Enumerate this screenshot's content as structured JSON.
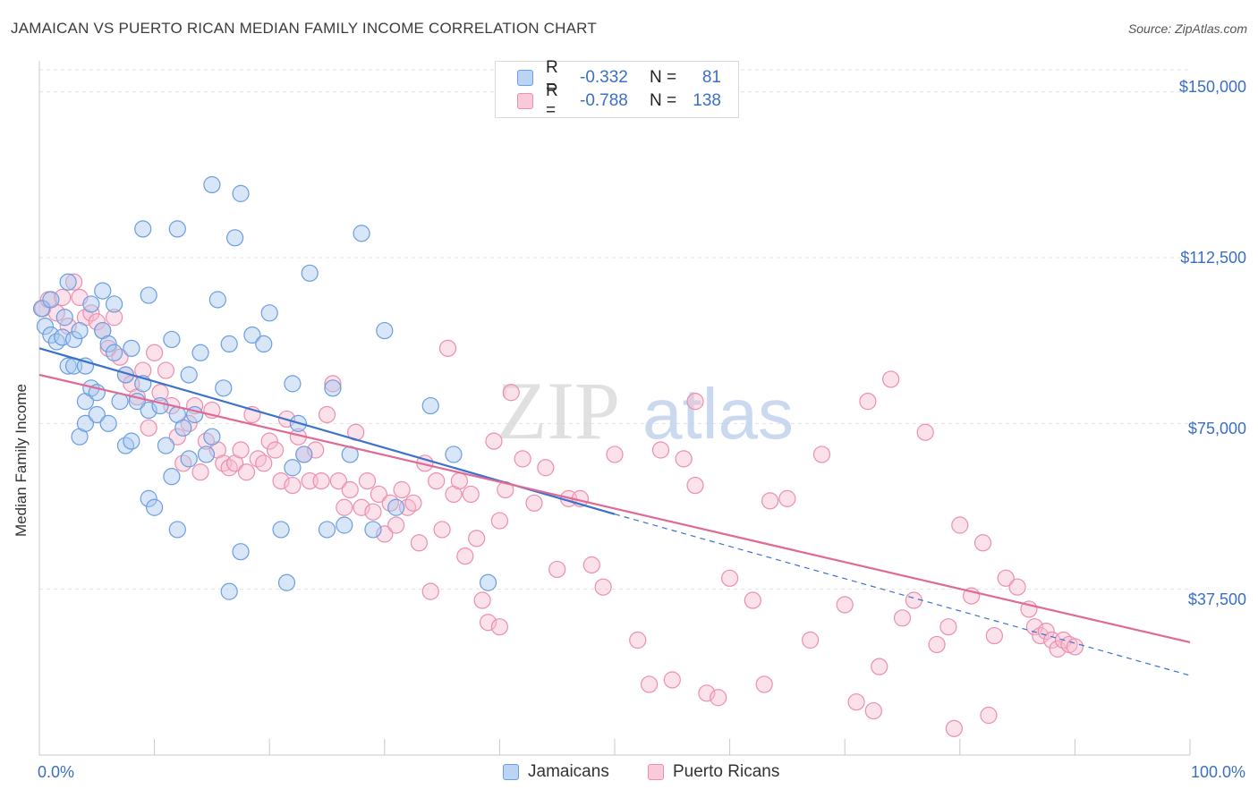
{
  "header": {
    "title": "JAMAICAN VS PUERTO RICAN MEDIAN FAMILY INCOME CORRELATION CHART",
    "source": "Source: ZipAtlas.com"
  },
  "watermark": {
    "zip": "ZIP",
    "atlas": "atlas"
  },
  "legend": {
    "rows": [
      {
        "r_label": "R =",
        "r_value": "-0.332",
        "n_label": "N =",
        "n_value": "81"
      },
      {
        "r_label": "R =",
        "r_value": "-0.788",
        "n_label": "N =",
        "n_value": "138"
      }
    ]
  },
  "bottom_legend": {
    "jamaicans": "Jamaicans",
    "puerto_ricans": "Puerto Ricans"
  },
  "axes": {
    "y_title": "Median Family Income",
    "x_min_label": "0.0%",
    "x_max_label": "100.0%",
    "y_ticks": [
      "$150,000",
      "$112,500",
      "$75,000",
      "$37,500"
    ]
  },
  "colors": {
    "jamaicans_fill": "#a9c8f0",
    "jamaicans_stroke": "#6a9ee0",
    "jamaicans_line": "#3a72cc",
    "puerto_fill": "#f7bcd0",
    "puerto_stroke": "#ec8eae",
    "puerto_line": "#e06a94",
    "tick_label": "#3a6fc4",
    "grid": "#e2e2e2"
  },
  "chart_data": {
    "type": "scatter",
    "xlim": [
      0,
      100
    ],
    "ylim": [
      0,
      155000
    ],
    "y_ticks": [
      37500,
      75000,
      112500,
      150000
    ],
    "grid": true,
    "legend_position": "top-center",
    "series": [
      {
        "name": "Jamaicans",
        "trend": {
          "x0": 0,
          "y0": 92000,
          "x1": 50,
          "y1": 54500,
          "dashed_to_x": 100,
          "dashed_to_y": 18000
        },
        "points": [
          [
            0.2,
            101000
          ],
          [
            0.5,
            97000
          ],
          [
            1.0,
            95000
          ],
          [
            1.5,
            93500
          ],
          [
            2.0,
            94500
          ],
          [
            2.2,
            99000
          ],
          [
            2.5,
            88000
          ],
          [
            2.5,
            107000
          ],
          [
            3.0,
            94000
          ],
          [
            3.0,
            88000
          ],
          [
            3.5,
            96000
          ],
          [
            3.5,
            72000
          ],
          [
            4.0,
            80000
          ],
          [
            4.0,
            88000
          ],
          [
            4.0,
            75000
          ],
          [
            4.5,
            102000
          ],
          [
            4.5,
            83000
          ],
          [
            5.0,
            82000
          ],
          [
            5.0,
            77000
          ],
          [
            5.5,
            96000
          ],
          [
            6.0,
            93000
          ],
          [
            6.0,
            75000
          ],
          [
            6.5,
            91000
          ],
          [
            6.5,
            102000
          ],
          [
            7.0,
            80000
          ],
          [
            7.5,
            86000
          ],
          [
            7.5,
            70000
          ],
          [
            8.0,
            71000
          ],
          [
            8.0,
            92000
          ],
          [
            8.5,
            80000
          ],
          [
            9.0,
            84000
          ],
          [
            9.5,
            78000
          ],
          [
            9.5,
            58000
          ],
          [
            10.0,
            56000
          ],
          [
            10.5,
            79000
          ],
          [
            11.0,
            70000
          ],
          [
            11.5,
            63000
          ],
          [
            11.5,
            94000
          ],
          [
            12.0,
            51000
          ],
          [
            12.0,
            77000
          ],
          [
            12.5,
            74000
          ],
          [
            13.0,
            67000
          ],
          [
            13.0,
            86000
          ],
          [
            13.5,
            77000
          ],
          [
            14.0,
            91000
          ],
          [
            14.5,
            68000
          ],
          [
            15.0,
            72000
          ],
          [
            15.0,
            129000
          ],
          [
            15.5,
            103000
          ],
          [
            16.0,
            83000
          ],
          [
            16.5,
            93000
          ],
          [
            16.5,
            37000
          ],
          [
            17.0,
            117000
          ],
          [
            17.5,
            46000
          ],
          [
            18.5,
            95000
          ],
          [
            19.5,
            93000
          ],
          [
            20.0,
            100000
          ],
          [
            21.0,
            51000
          ],
          [
            21.5,
            39000
          ],
          [
            22.0,
            65000
          ],
          [
            22.0,
            84000
          ],
          [
            22.5,
            75000
          ],
          [
            23.0,
            68000
          ],
          [
            23.5,
            109000
          ],
          [
            25.0,
            51000
          ],
          [
            25.5,
            83000
          ],
          [
            27.0,
            68000
          ],
          [
            28.0,
            118000
          ],
          [
            29.0,
            51000
          ],
          [
            30.0,
            96000
          ],
          [
            31.0,
            56000
          ],
          [
            34.0,
            79000
          ],
          [
            36.0,
            68000
          ],
          [
            39.0,
            39000
          ],
          [
            9.0,
            119000
          ],
          [
            17.5,
            127000
          ],
          [
            1.0,
            103000
          ],
          [
            12.0,
            119000
          ],
          [
            5.5,
            105000
          ],
          [
            9.5,
            104000
          ],
          [
            26.5,
            52000
          ]
        ]
      },
      {
        "name": "Puerto Ricans",
        "trend": {
          "x0": 0,
          "y0": 86000,
          "x1": 100,
          "y1": 25500
        },
        "points": [
          [
            0.3,
            101000
          ],
          [
            0.8,
            103000
          ],
          [
            1.5,
            100000
          ],
          [
            2.0,
            103500
          ],
          [
            2.5,
            97000
          ],
          [
            3.0,
            107000
          ],
          [
            3.5,
            103500
          ],
          [
            4.0,
            99000
          ],
          [
            4.5,
            100000
          ],
          [
            5.0,
            98000
          ],
          [
            5.5,
            96000
          ],
          [
            6.0,
            92000
          ],
          [
            6.5,
            99000
          ],
          [
            7.0,
            90000
          ],
          [
            7.5,
            86000
          ],
          [
            8.0,
            84000
          ],
          [
            8.5,
            81000
          ],
          [
            9.0,
            87000
          ],
          [
            9.5,
            74000
          ],
          [
            10.0,
            91000
          ],
          [
            10.5,
            82000
          ],
          [
            11.0,
            87000
          ],
          [
            11.5,
            79000
          ],
          [
            12.0,
            72000
          ],
          [
            12.5,
            66000
          ],
          [
            13.0,
            75000
          ],
          [
            13.5,
            79000
          ],
          [
            14.0,
            64000
          ],
          [
            14.5,
            71000
          ],
          [
            15.0,
            78000
          ],
          [
            15.5,
            69000
          ],
          [
            16.0,
            66000
          ],
          [
            16.5,
            65000
          ],
          [
            17.0,
            66000
          ],
          [
            17.5,
            69000
          ],
          [
            18.0,
            64000
          ],
          [
            18.5,
            77000
          ],
          [
            19.0,
            67000
          ],
          [
            19.5,
            66000
          ],
          [
            20.0,
            71000
          ],
          [
            20.5,
            69000
          ],
          [
            21.0,
            62000
          ],
          [
            21.5,
            76000
          ],
          [
            22.0,
            61000
          ],
          [
            22.5,
            72000
          ],
          [
            23.0,
            68000
          ],
          [
            23.5,
            62000
          ],
          [
            24.0,
            69000
          ],
          [
            24.5,
            62000
          ],
          [
            25.0,
            77000
          ],
          [
            25.5,
            84000
          ],
          [
            26.0,
            62000
          ],
          [
            26.5,
            56000
          ],
          [
            27.0,
            60000
          ],
          [
            27.5,
            73000
          ],
          [
            28.0,
            56000
          ],
          [
            28.5,
            62000
          ],
          [
            29.0,
            55000
          ],
          [
            29.5,
            59000
          ],
          [
            30.0,
            50000
          ],
          [
            30.5,
            57000
          ],
          [
            31.0,
            52000
          ],
          [
            31.5,
            60000
          ],
          [
            32.0,
            56000
          ],
          [
            32.5,
            57000
          ],
          [
            33.0,
            48000
          ],
          [
            33.5,
            66000
          ],
          [
            34.0,
            37000
          ],
          [
            34.5,
            62000
          ],
          [
            35.0,
            51000
          ],
          [
            35.5,
            92000
          ],
          [
            36.0,
            59000
          ],
          [
            36.5,
            62000
          ],
          [
            37.0,
            45000
          ],
          [
            37.5,
            59000
          ],
          [
            38.0,
            49000
          ],
          [
            38.5,
            35000
          ],
          [
            39.0,
            30000
          ],
          [
            39.5,
            71000
          ],
          [
            40.0,
            53000
          ],
          [
            40.5,
            60000
          ],
          [
            41.0,
            82000
          ],
          [
            42.0,
            67000
          ],
          [
            43.0,
            57000
          ],
          [
            44.0,
            65000
          ],
          [
            46.0,
            58000
          ],
          [
            48.0,
            43000
          ],
          [
            49.0,
            38000
          ],
          [
            50.0,
            68000
          ],
          [
            52.0,
            26000
          ],
          [
            53.0,
            16000
          ],
          [
            54.0,
            69000
          ],
          [
            55.0,
            17000
          ],
          [
            56.0,
            67000
          ],
          [
            57.0,
            61000
          ],
          [
            58.0,
            14000
          ],
          [
            59.0,
            13000
          ],
          [
            60.0,
            40000
          ],
          [
            62.0,
            35000
          ],
          [
            63.0,
            16000
          ],
          [
            65.0,
            58000
          ],
          [
            67.0,
            26000
          ],
          [
            68.0,
            68000
          ],
          [
            70.0,
            34000
          ],
          [
            71.0,
            12000
          ],
          [
            72.0,
            80000
          ],
          [
            73.0,
            20000
          ],
          [
            74.0,
            85000
          ],
          [
            75.0,
            31000
          ],
          [
            76.0,
            35000
          ],
          [
            77.0,
            73000
          ],
          [
            78.0,
            25000
          ],
          [
            79.0,
            29000
          ],
          [
            80.0,
            52000
          ],
          [
            81.0,
            36000
          ],
          [
            82.0,
            48000
          ],
          [
            83.0,
            27000
          ],
          [
            84.0,
            40000
          ],
          [
            85.0,
            38000
          ],
          [
            86.0,
            33000
          ],
          [
            86.5,
            29000
          ],
          [
            87.0,
            27000
          ],
          [
            87.5,
            28000
          ],
          [
            88.0,
            26000
          ],
          [
            88.5,
            24000
          ],
          [
            89.0,
            26000
          ],
          [
            89.5,
            25000
          ],
          [
            90.0,
            24500
          ],
          [
            82.5,
            9000
          ],
          [
            79.5,
            6000
          ],
          [
            72.5,
            10000
          ],
          [
            63.5,
            57500
          ],
          [
            57.0,
            80000
          ],
          [
            47.0,
            58000
          ],
          [
            45.0,
            42000
          ],
          [
            40.0,
            29000
          ]
        ]
      }
    ]
  }
}
